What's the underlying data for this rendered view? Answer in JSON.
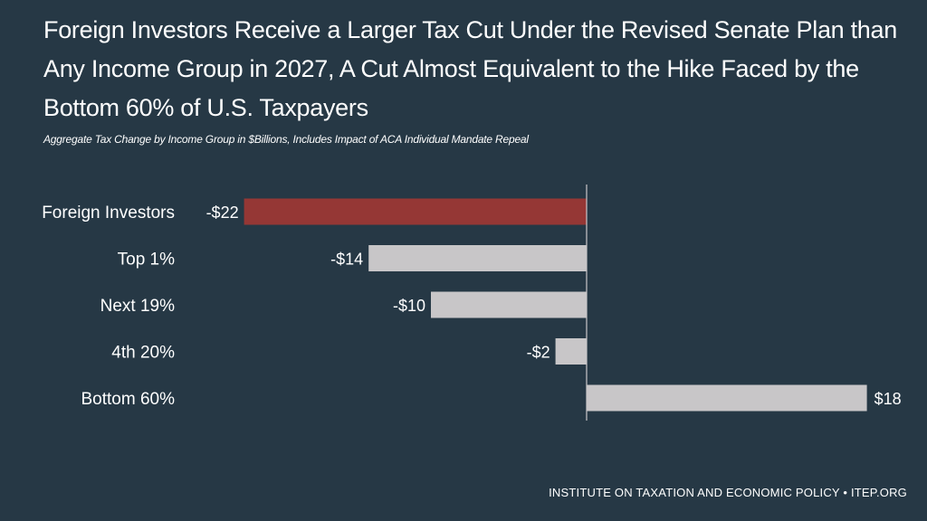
{
  "title": "Foreign Investors Receive a Larger Tax Cut Under the Revised Senate Plan than Any Income Group in 2027, A Cut Almost Equivalent to the Hike Faced by the Bottom 60% of U.S. Taxpayers",
  "subtitle": "Aggregate Tax Change by Income Group in $Billions, Includes Impact of ACA Individual Mandate Repeal",
  "footer": "INSTITUTE ON TAXATION AND ECONOMIC POLICY • ITEP.ORG",
  "colors": {
    "background": "#263845",
    "highlight_bar": "#953735",
    "default_bar": "#c8c6c8",
    "axis": "#c8c6c8",
    "text": "#ffffff"
  },
  "chart_data": {
    "type": "bar",
    "orientation": "horizontal",
    "title": "Foreign Investors Receive a Larger Tax Cut Under the Revised Senate Plan than Any Income Group in 2027, A Cut Almost Equivalent to the Hike Faced by the Bottom 60% of U.S. Taxpayers",
    "subtitle": "Aggregate Tax Change by Income Group in $Billions, Includes Impact of ACA Individual Mandate Repeal",
    "xlabel": "",
    "ylabel": "",
    "categories": [
      "Foreign Investors",
      "Top 1%",
      "Next 19%",
      "4th 20%",
      "Bottom 60%"
    ],
    "values": [
      -22,
      -14,
      -10,
      -2,
      18
    ],
    "data_labels": [
      "-$22",
      "-$14",
      "-$10",
      "-$2",
      "$18"
    ],
    "highlight": [
      true,
      false,
      false,
      false,
      false
    ],
    "xlim": [
      -22,
      18
    ],
    "grid": false,
    "legend": "none"
  }
}
